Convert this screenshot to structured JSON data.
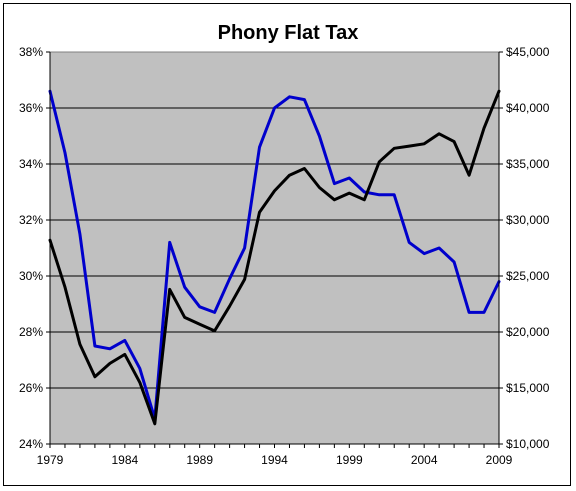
{
  "chart_data": {
    "type": "line",
    "title": "Phony Flat Tax",
    "xlabel": "",
    "ylabel": "",
    "x_ticks": [
      "1979",
      "1984",
      "1989",
      "1994",
      "1999",
      "2004",
      "2009"
    ],
    "y_left_ticks": [
      "24%",
      "26%",
      "28%",
      "30%",
      "32%",
      "34%",
      "36%",
      "38%"
    ],
    "y_right_ticks": [
      "$10,000",
      "$15,000",
      "$20,000",
      "$25,000",
      "$30,000",
      "$35,000",
      "$40,000",
      "$45,000"
    ],
    "xlim": [
      1979,
      2009
    ],
    "ylim_left": [
      24,
      38
    ],
    "ylim_right": [
      10000,
      45000
    ],
    "grid": true,
    "plot_background": "#c0c0c0",
    "series": [
      {
        "axis": "left",
        "color": "#0000cc",
        "x": [
          1979,
          1980,
          1981,
          1982,
          1983,
          1984,
          1985,
          1986,
          1987,
          1988,
          1989,
          1990,
          1991,
          1992,
          1993,
          1994,
          1995,
          1996,
          1997,
          1998,
          1999,
          2000,
          2001,
          2002,
          2003,
          2004,
          2005,
          2006,
          2007,
          2008,
          2009
        ],
        "values": [
          36.6,
          34.4,
          31.5,
          27.5,
          27.4,
          27.7,
          26.7,
          24.9,
          31.2,
          29.6,
          28.9,
          28.7,
          29.9,
          31.0,
          34.6,
          36.0,
          36.4,
          36.3,
          35.0,
          33.3,
          33.5,
          33.0,
          32.9,
          32.9,
          31.2,
          30.8,
          31.0,
          30.5,
          28.7,
          28.7,
          29.8
        ]
      },
      {
        "axis": "right",
        "color": "#000000",
        "x": [
          1979,
          1980,
          1981,
          1982,
          1983,
          1984,
          1985,
          1986,
          1987,
          1988,
          1989,
          1990,
          1991,
          1992,
          1993,
          1994,
          1995,
          1996,
          1997,
          1998,
          1999,
          2000,
          2001,
          2002,
          2003,
          2004,
          2005,
          2006,
          2007,
          2008,
          2009
        ],
        "values": [
          28200,
          24000,
          18900,
          16000,
          17200,
          18000,
          15500,
          11800,
          23800,
          21300,
          20700,
          20100,
          22300,
          24700,
          30700,
          32600,
          34000,
          34600,
          32900,
          31800,
          32400,
          31800,
          35200,
          36400,
          36600,
          36800,
          37700,
          37000,
          34000,
          38200,
          41500
        ]
      }
    ]
  }
}
